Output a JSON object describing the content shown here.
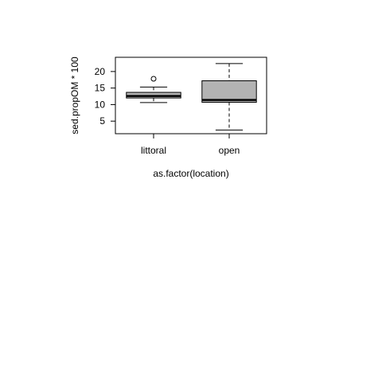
{
  "chart_data": {
    "type": "boxplot",
    "title": "",
    "xlabel": "as.factor(location)",
    "ylabel": "sed.propOM * 100",
    "ylim": [
      1.2,
      24.3
    ],
    "yticks": [
      5,
      10,
      15,
      20
    ],
    "box_fill": "#b3b3b3",
    "categories": [
      "littoral",
      "open"
    ],
    "boxes": [
      {
        "name": "littoral",
        "whisker_low": 10.6,
        "q1": 12.0,
        "median": 12.6,
        "q3": 13.7,
        "whisker_high": 15.3,
        "outliers": [
          17.8
        ]
      },
      {
        "name": "open",
        "whisker_low": 2.3,
        "q1": 10.7,
        "median": 11.4,
        "q3": 17.2,
        "whisker_high": 22.4,
        "outliers": []
      }
    ]
  }
}
